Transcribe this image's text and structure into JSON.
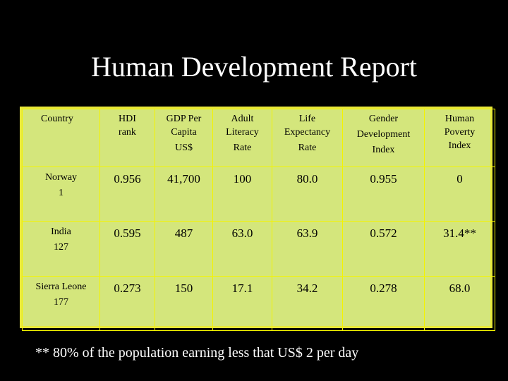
{
  "title": "Human Development Report",
  "table": {
    "headers": [
      {
        "lines": [
          "Country"
        ]
      },
      {
        "lines": [
          "HDI",
          "rank"
        ]
      },
      {
        "lines": [
          "GDP Per",
          "Capita",
          "US$"
        ]
      },
      {
        "lines": [
          "Adult",
          "Literacy",
          "Rate"
        ]
      },
      {
        "lines": [
          "Life",
          "Expectancy",
          "Rate"
        ]
      },
      {
        "lines": [
          "Gender",
          "Development",
          "Index"
        ]
      },
      {
        "lines": [
          "Human",
          "Poverty",
          "Index"
        ]
      }
    ],
    "rows": [
      {
        "country": "Norway",
        "rank": "1",
        "values": [
          "0.956",
          "41,700",
          "100",
          "80.0",
          "0.955",
          "0"
        ]
      },
      {
        "country": "India",
        "rank": "127",
        "values": [
          "0.595",
          "487",
          "63.0",
          "63.9",
          "0.572",
          "31.4**"
        ]
      },
      {
        "country": "Sierra Leone",
        "rank": "177",
        "values": [
          "0.273",
          "150",
          "17.1",
          "34.2",
          "0.278",
          "68.0"
        ]
      }
    ]
  },
  "footnote": "**  80% of the population earning less that US$ 2 per day",
  "colors": {
    "background": "#000000",
    "table_fill": "#d4e67c",
    "table_border": "#e8e83a",
    "title_text": "#ffffff"
  }
}
